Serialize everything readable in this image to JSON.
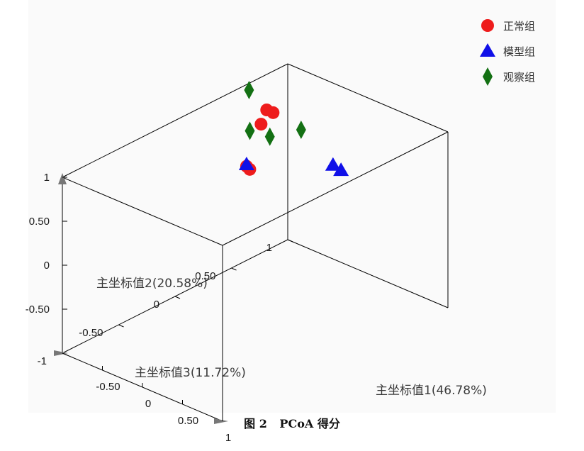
{
  "caption": {
    "figure_no": "图 2",
    "title": "PCoA 得分"
  },
  "chart_data": {
    "type": "scatter",
    "projection": "3d",
    "xlabel": "主坐标值1(46.78%)",
    "ylabel": "主坐标值3(11.72%)",
    "zlabel": "主坐标值2(20.58%)",
    "x_ticks": [
      "-0.50",
      "0",
      "0.50",
      "1"
    ],
    "y_ticks": [
      "-1",
      "-0.50",
      "0",
      "0.50",
      "1"
    ],
    "z_ticks": [
      "-0.50",
      "0",
      "0.50",
      "1"
    ],
    "legend_position": "top-right",
    "series": [
      {
        "name": "正常组",
        "marker": "circle",
        "color": "#ee1c1c",
        "points": [
          [
            -0.7,
            0.6,
            0.85
          ],
          [
            -0.62,
            0.6,
            0.85
          ],
          [
            -0.7,
            0.55,
            0.72
          ],
          [
            -0.67,
            0.4,
            0.35
          ],
          [
            -0.63,
            0.4,
            0.33
          ]
        ]
      },
      {
        "name": "模型组",
        "marker": "triangle",
        "color": "#1010e8",
        "points": [
          [
            0.55,
            0.3,
            0.9
          ],
          [
            0.65,
            0.3,
            0.88
          ],
          [
            -0.67,
            0.4,
            0.37
          ]
        ]
      },
      {
        "name": "观察组",
        "marker": "diamond",
        "color": "#137013",
        "points": [
          [
            -0.85,
            0.55,
            1.05
          ],
          [
            -0.77,
            0.5,
            0.65
          ],
          [
            -0.52,
            0.5,
            0.68
          ],
          [
            -0.2,
            0.55,
            0.85
          ]
        ]
      }
    ]
  }
}
